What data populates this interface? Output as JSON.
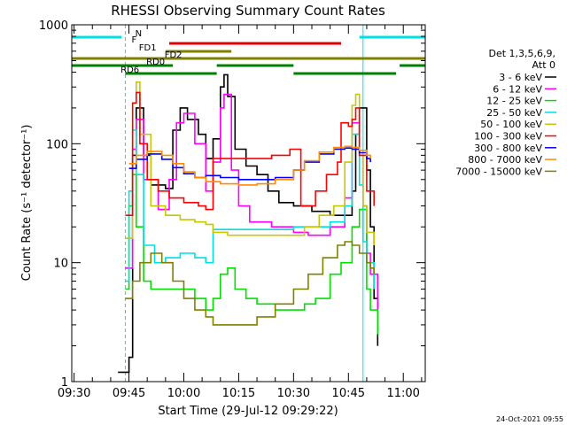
{
  "chart_data": {
    "type": "line",
    "title": "RHESSI Observing Summary Count Rates",
    "xlabel": "Start Time (29-Jul-12 09:29:22)",
    "ylabel": "Count Rate (s⁻¹ detector⁻¹)",
    "y_scale": "log",
    "ylim": [
      1,
      1000
    ],
    "xlim": [
      "09:29:22",
      "11:06:00"
    ],
    "x_ticks": [
      "09:30",
      "09:45",
      "10:00",
      "10:15",
      "10:30",
      "10:45",
      "11:00"
    ],
    "y_ticks": [
      "1",
      "10",
      "100",
      "1000"
    ],
    "legend": {
      "header": [
        "Det 1,3,5,6,9,",
        "Att 0"
      ],
      "placement": "right"
    },
    "footer_stamp": "24-Oct-2021 09:55",
    "series": [
      {
        "name": "3 - 6 keV",
        "color": "#000000",
        "x": [
          "09:42",
          "09:45",
          "09:46",
          "09:47",
          "09:49",
          "09:51",
          "09:55",
          "09:57",
          "09:59",
          "10:01",
          "10:04",
          "10:06",
          "10:08",
          "10:10",
          "10:11",
          "10:12",
          "10:14",
          "10:17",
          "10:20",
          "10:23",
          "10:26",
          "10:30",
          "10:35",
          "10:40",
          "10:44",
          "10:46",
          "10:47",
          "10:48",
          "10:50",
          "10:51",
          "10:52",
          "10:53"
        ],
        "y": [
          1.2,
          1.6,
          80,
          200,
          80,
          45,
          42,
          130,
          200,
          160,
          120,
          75,
          110,
          300,
          380,
          250,
          90,
          65,
          55,
          40,
          32,
          30,
          27,
          25,
          25,
          40,
          120,
          200,
          60,
          20,
          5,
          2
        ]
      },
      {
        "name": "6 - 12 keV",
        "color": "#ff00ff",
        "x": [
          "09:44",
          "09:46",
          "09:47",
          "09:49",
          "09:53",
          "09:56",
          "09:58",
          "10:00",
          "10:03",
          "10:06",
          "10:08",
          "10:10",
          "10:11",
          "10:13",
          "10:15",
          "10:18",
          "10:24",
          "10:30",
          "10:34",
          "10:40",
          "10:44",
          "10:46",
          "10:48",
          "10:49",
          "10:50",
          "10:51",
          "10:53"
        ],
        "y": [
          9,
          90,
          160,
          50,
          28,
          50,
          150,
          180,
          100,
          40,
          70,
          200,
          260,
          60,
          30,
          22,
          20,
          18,
          17,
          20,
          35,
          150,
          80,
          30,
          12,
          8,
          4
        ]
      },
      {
        "name": "12 - 25 keV",
        "color": "#00e000",
        "x": [
          "09:44",
          "09:45",
          "09:46",
          "09:47",
          "09:49",
          "09:51",
          "09:55",
          "09:59",
          "10:03",
          "10:06",
          "10:08",
          "10:10",
          "10:12",
          "10:14",
          "10:17",
          "10:20",
          "10:25",
          "10:30",
          "10:33",
          "10:36",
          "10:40",
          "10:43",
          "10:46",
          "10:48",
          "10:50",
          "10:51",
          "10:53"
        ],
        "y": [
          6,
          30,
          55,
          20,
          7,
          6,
          6,
          6,
          5,
          4,
          5,
          8,
          9,
          6,
          5,
          4.5,
          4,
          4,
          4.5,
          5,
          8,
          10,
          20,
          28,
          6,
          4,
          2.5
        ]
      },
      {
        "name": "25 - 50 keV",
        "color": "#00e0e0",
        "x": [
          "09:44",
          "09:45",
          "09:46",
          "09:47",
          "09:49",
          "09:52",
          "09:55",
          "09:59",
          "10:03",
          "10:06",
          "10:08",
          "10:12",
          "10:16",
          "10:20",
          "10:25",
          "10:30",
          "10:33",
          "10:36",
          "10:40",
          "10:44",
          "10:46",
          "10:48",
          "10:49",
          "10:50",
          "10:52"
        ],
        "y": [
          7,
          40,
          130,
          55,
          14,
          10,
          11,
          12,
          11,
          10,
          19,
          19,
          19,
          19,
          19,
          20,
          20,
          20,
          22,
          30,
          120,
          45,
          15,
          10,
          6
        ]
      },
      {
        "name": "50 - 100 keV",
        "color": "#c8c800",
        "x": [
          "09:44",
          "09:46",
          "09:47",
          "09:48",
          "09:51",
          "09:55",
          "09:59",
          "10:03",
          "10:06",
          "10:08",
          "10:12",
          "10:20",
          "10:27",
          "10:30",
          "10:33",
          "10:37",
          "10:41",
          "10:44",
          "10:46",
          "10:47",
          "10:48",
          "10:49",
          "10:50",
          "10:52"
        ],
        "y": [
          16,
          220,
          330,
          120,
          30,
          25,
          23,
          22,
          21,
          18,
          17,
          17,
          17,
          17,
          20,
          25,
          30,
          70,
          210,
          260,
          80,
          30,
          18,
          14
        ]
      },
      {
        "name": "100 - 300 keV",
        "color": "#ff0000",
        "x": [
          "09:44",
          "09:46",
          "09:47",
          "09:48",
          "09:50",
          "09:53",
          "09:56",
          "10:00",
          "10:04",
          "10:06",
          "10:08",
          "10:12",
          "10:18",
          "10:24",
          "10:29",
          "10:32",
          "10:36",
          "10:39",
          "10:42",
          "10:43",
          "10:45",
          "10:46",
          "10:47",
          "10:48",
          "10:50",
          "10:52"
        ],
        "y": [
          25,
          220,
          270,
          100,
          50,
          40,
          35,
          32,
          30,
          28,
          75,
          75,
          75,
          80,
          90,
          30,
          40,
          55,
          70,
          150,
          140,
          160,
          200,
          80,
          40,
          30
        ]
      },
      {
        "name": "300 - 800 keV",
        "color": "#0000ff",
        "x": [
          "09:45",
          "09:47",
          "09:50",
          "09:54",
          "09:57",
          "10:00",
          "10:03",
          "10:06",
          "10:10",
          "10:15",
          "10:20",
          "10:25",
          "10:30",
          "10:33",
          "10:37",
          "10:41",
          "10:44",
          "10:46",
          "10:48",
          "10:50",
          "10:51"
        ],
        "y": [
          62,
          74,
          82,
          74,
          63,
          56,
          52,
          54,
          52,
          50,
          50,
          52,
          60,
          70,
          82,
          90,
          92,
          90,
          84,
          75,
          70
        ]
      },
      {
        "name": "800 - 7000 keV",
        "color": "#ff8c00",
        "x": [
          "09:45",
          "09:47",
          "09:50",
          "09:54",
          "09:57",
          "10:00",
          "10:03",
          "10:06",
          "10:10",
          "10:15",
          "10:20",
          "10:25",
          "10:30",
          "10:33",
          "10:37",
          "10:41",
          "10:44",
          "10:46",
          "10:48",
          "10:50",
          "10:51"
        ],
        "y": [
          68,
          80,
          86,
          80,
          68,
          58,
          52,
          48,
          46,
          45,
          46,
          50,
          60,
          72,
          85,
          93,
          95,
          93,
          88,
          80,
          75
        ]
      },
      {
        "name": "7000 - 15000 keV",
        "color": "#808000",
        "x": [
          "09:44",
          "09:46",
          "09:48",
          "09:51",
          "09:54",
          "09:57",
          "10:00",
          "10:03",
          "10:06",
          "10:08",
          "10:12",
          "10:16",
          "10:20",
          "10:25",
          "10:30",
          "10:34",
          "10:38",
          "10:42",
          "10:44",
          "10:46",
          "10:48",
          "10:50",
          "10:51",
          "10:52"
        ],
        "y": [
          5,
          7,
          10,
          12,
          10,
          7,
          5,
          4,
          3.5,
          3,
          3,
          3,
          3.5,
          4.5,
          6,
          8,
          11,
          14,
          15,
          14,
          12,
          10,
          9,
          8
        ]
      }
    ],
    "state_bars": [
      {
        "label": "N",
        "color": "#00e0e0",
        "segments": [
          [
            "09:29:22",
            "09:43"
          ],
          [
            "10:48",
            "11:06"
          ]
        ]
      },
      {
        "label": "F",
        "color": "#e00000",
        "segments": [
          [
            "09:56",
            "10:43"
          ]
        ]
      },
      {
        "label": "FD1",
        "color": "#808000",
        "segments": [
          [
            "09:55",
            "10:13"
          ]
        ]
      },
      {
        "label": "FD2",
        "color": "#808000",
        "segments": [
          [
            "09:29:22",
            "11:06"
          ]
        ]
      },
      {
        "label": "RD0",
        "color": "#008000",
        "segments": [
          [
            "09:29:22",
            "09:57"
          ],
          [
            "10:09",
            "10:30"
          ],
          [
            "10:59",
            "11:06"
          ]
        ]
      },
      {
        "label": "RD6",
        "color": "#008000",
        "segments": [
          [
            "09:44",
            "10:09"
          ],
          [
            "10:30",
            "10:58"
          ]
        ]
      }
    ],
    "markers": [
      {
        "x": "09:44",
        "color": "#00e0e0"
      },
      {
        "x": "10:49",
        "color": "#00e0e0"
      },
      {
        "x": "11:06",
        "color": "#00e0e0"
      }
    ]
  }
}
